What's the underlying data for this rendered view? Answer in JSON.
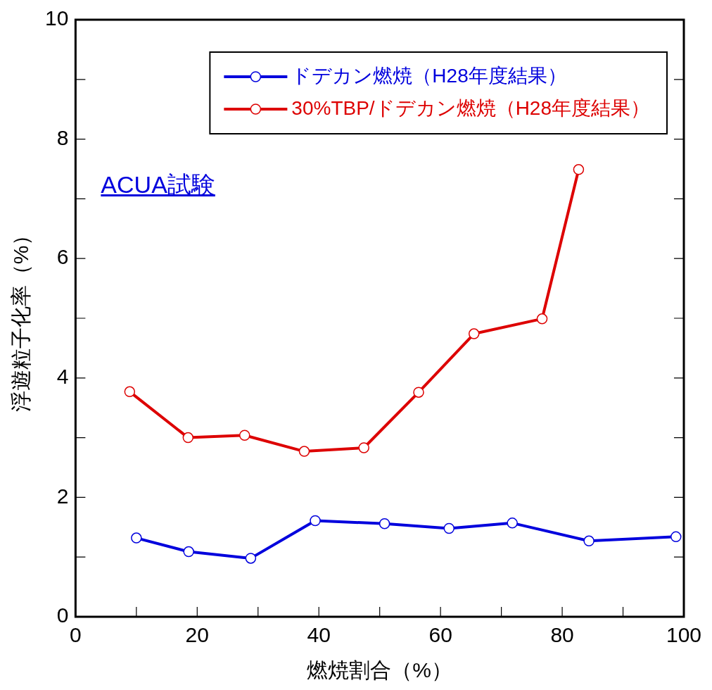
{
  "chart_data": {
    "type": "line",
    "xlabel": "燃焼割合（%）",
    "ylabel": "浮遊粒子化率（%）",
    "xlim": [
      0,
      100
    ],
    "xticks": [
      0,
      {
        "value": 10,
        "label": null
      },
      20,
      {
        "value": 30,
        "label": null
      },
      40,
      {
        "value": 50,
        "label": null
      },
      60,
      {
        "value": 70,
        "label": null
      },
      80,
      {
        "value": 90,
        "label": null
      },
      100
    ],
    "ylim": [
      0,
      10
    ],
    "yticks": [
      0,
      {
        "value": 1,
        "label": null
      },
      2,
      {
        "value": 3,
        "label": null
      },
      4,
      {
        "value": 5,
        "label": null
      },
      6,
      {
        "value": 7,
        "label": null
      },
      8,
      {
        "value": 9,
        "label": null
      },
      10
    ],
    "grid": false,
    "legend": "top right",
    "marker": "circle",
    "line_style": "solid",
    "annotations": [
      "ACUA試験"
    ],
    "series": [
      {
        "name": "ドデカン燃焼（H28年度結果）",
        "color": "#0000dd",
        "x": [
          10.0,
          18.6,
          28.8,
          39.4,
          50.8,
          61.4,
          71.8,
          84.4,
          98.7
        ],
        "values": [
          1.32,
          1.09,
          0.98,
          1.61,
          1.56,
          1.48,
          1.57,
          1.27,
          1.34
        ]
      },
      {
        "name": "30%TBP/ドデカン燃焼（H28年度結果）",
        "color": "#dd0000",
        "x": [
          8.9,
          18.5,
          27.8,
          37.6,
          47.4,
          56.4,
          65.5,
          76.7,
          82.7
        ],
        "values": [
          3.77,
          3.0,
          3.04,
          2.77,
          2.83,
          3.76,
          4.74,
          4.99,
          7.49
        ]
      }
    ]
  }
}
